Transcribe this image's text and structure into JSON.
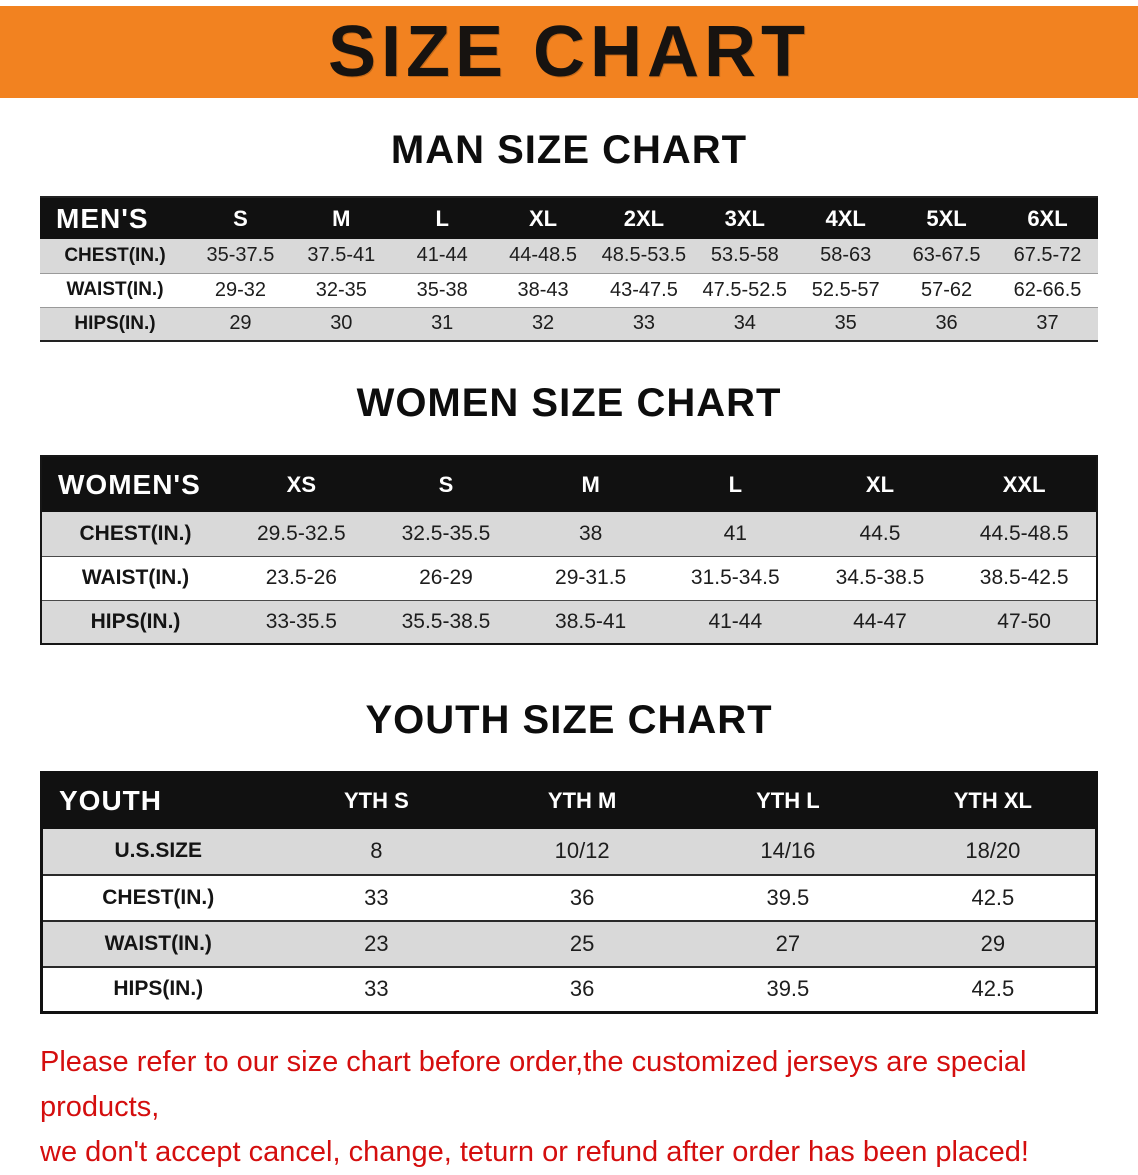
{
  "banner": {
    "title": "SIZE CHART"
  },
  "men": {
    "heading": "MAN SIZE CHART",
    "table": {
      "header": [
        "MEN'S",
        "S",
        "M",
        "L",
        "XL",
        "2XL",
        "3XL",
        "4XL",
        "5XL",
        "6XL"
      ],
      "rows": [
        [
          "CHEST(IN.)",
          "35-37.5",
          "37.5-41",
          "41-44",
          "44-48.5",
          "48.5-53.5",
          "53.5-58",
          "58-63",
          "63-67.5",
          "67.5-72"
        ],
        [
          "WAIST(IN.)",
          "29-32",
          "32-35",
          "35-38",
          "38-43",
          "43-47.5",
          "47.5-52.5",
          "52.5-57",
          "57-62",
          "62-66.5"
        ],
        [
          "HIPS(IN.)",
          "29",
          "30",
          "31",
          "32",
          "33",
          "34",
          "35",
          "36",
          "37"
        ]
      ]
    }
  },
  "women": {
    "heading": "WOMEN SIZE CHART",
    "table": {
      "header": [
        "WOMEN'S",
        "XS",
        "S",
        "M",
        "L",
        "XL",
        "XXL"
      ],
      "rows": [
        [
          "CHEST(IN.)",
          "29.5-32.5",
          "32.5-35.5",
          "38",
          "41",
          "44.5",
          "44.5-48.5"
        ],
        [
          "WAIST(IN.)",
          "23.5-26",
          "26-29",
          "29-31.5",
          "31.5-34.5",
          "34.5-38.5",
          "38.5-42.5"
        ],
        [
          "HIPS(IN.)",
          "33-35.5",
          "35.5-38.5",
          "38.5-41",
          "41-44",
          "44-47",
          "47-50"
        ]
      ]
    }
  },
  "youth": {
    "heading": "YOUTH SIZE CHART",
    "table": {
      "header": [
        "YOUTH",
        "YTH S",
        "YTH M",
        "YTH L",
        "YTH XL"
      ],
      "rows": [
        [
          "U.S.SIZE",
          "8",
          "10/12",
          "14/16",
          "18/20"
        ],
        [
          "CHEST(IN.)",
          "33",
          "36",
          "39.5",
          "42.5"
        ],
        [
          "WAIST(IN.)",
          "23",
          "25",
          "27",
          "29"
        ],
        [
          "HIPS(IN.)",
          "33",
          "36",
          "39.5",
          "42.5"
        ]
      ]
    }
  },
  "disclaimer": {
    "line1": "Please refer to our size chart before order,the customized jerseys are special products,",
    "line2": "we don't accept cancel, change, teturn or refund after order has been placed!"
  },
  "colors": {
    "banner_orange": "#F28220",
    "table_header_black": "#111111",
    "row_stripe_gray": "#d9d9d9",
    "disclaimer_red": "#D40E0E"
  }
}
